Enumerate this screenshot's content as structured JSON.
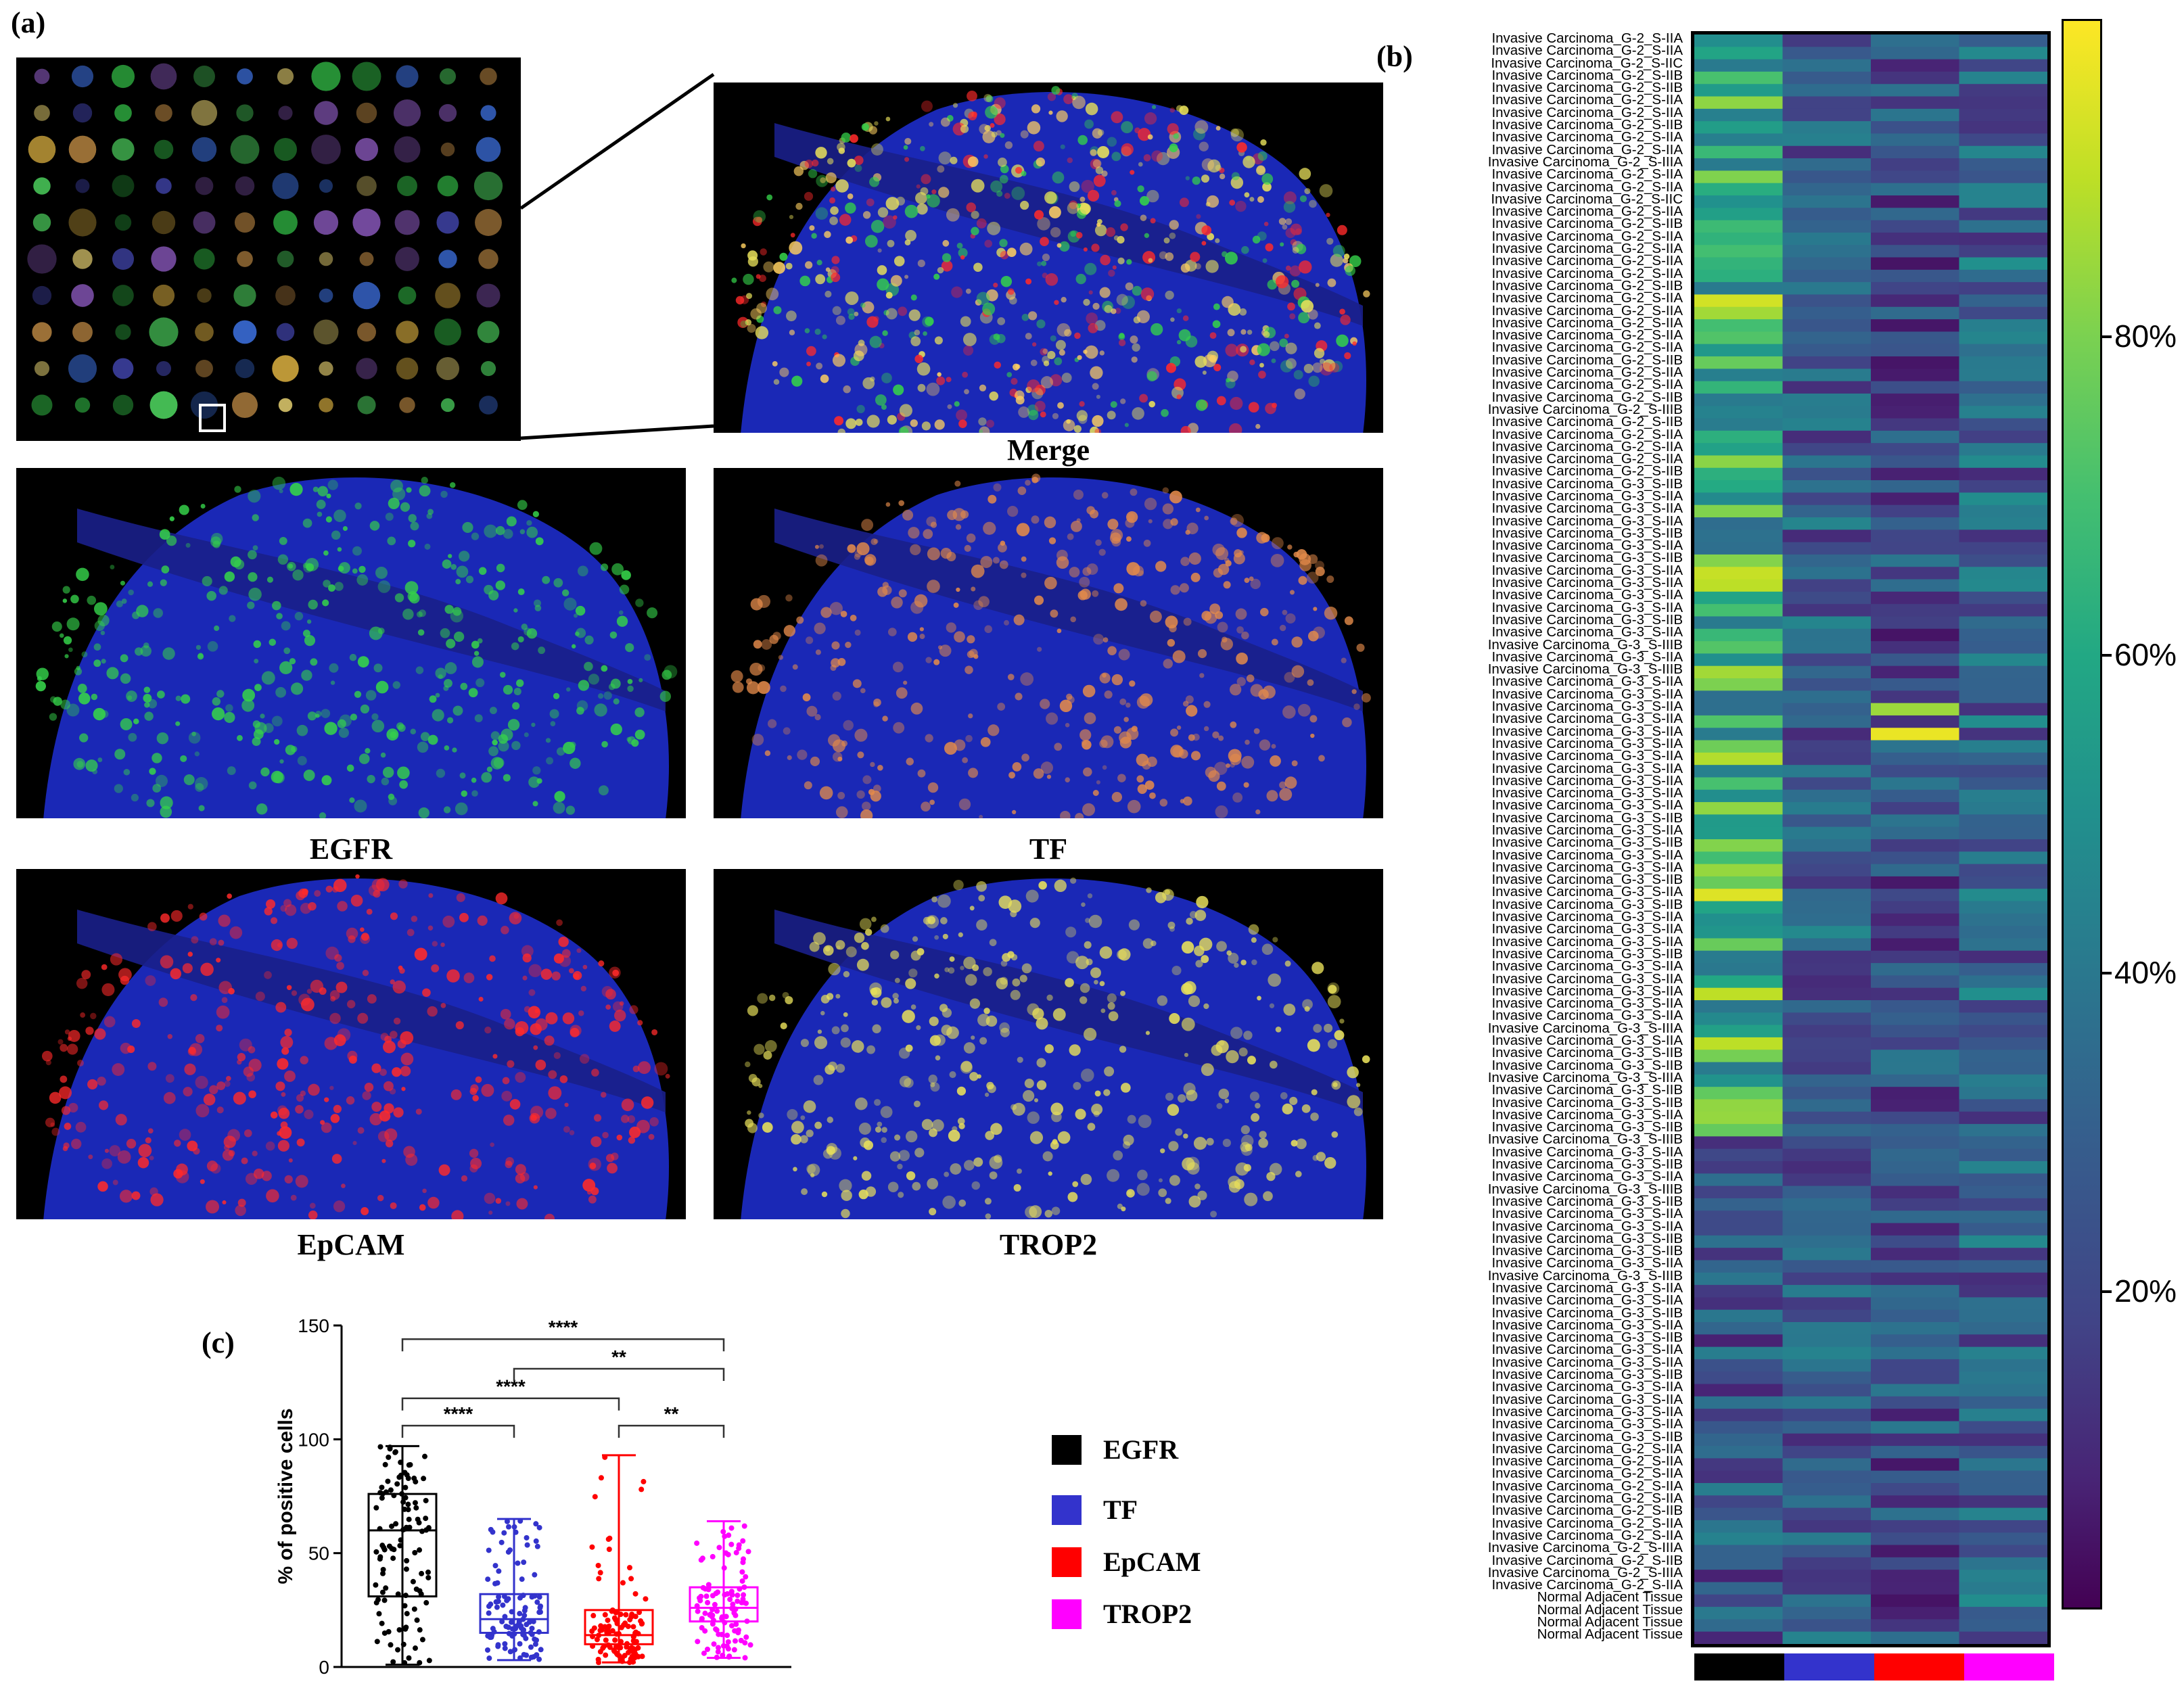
{
  "figure": {
    "panel_a_label": "(a)",
    "panel_b_label": "(b)",
    "panel_c_label": "(c)",
    "captions": {
      "merge": "Merge",
      "egfr": "EGFR",
      "tf": "TF",
      "epcam": "EpCAM",
      "trop2": "TROP2"
    }
  },
  "colors": {
    "egfr": "#000000",
    "tf": "#3333cc",
    "epcam": "#ff0000",
    "trop2": "#ff00ff",
    "nucleus": "#1f2fd6",
    "egfr_stain": "#35d24a",
    "tf_stain": "#e38a4a",
    "epcam_stain": "#ff2a2a",
    "trop2_stain": "#e8e05a"
  },
  "legend": [
    {
      "label": "EGFR",
      "color": "#000000"
    },
    {
      "label": "TF",
      "color": "#3333cc"
    },
    {
      "label": "EpCAM",
      "color": "#ff0000"
    },
    {
      "label": "TROP2",
      "color": "#ff00ff"
    }
  ],
  "heatmap": {
    "markers": [
      "EGFR",
      "TF",
      "EpCAM",
      "TROP2"
    ],
    "marker_colors": [
      "#000000",
      "#3333cc",
      "#ff0000",
      "#ff00ff"
    ],
    "colorbar_ticks": [
      "80%",
      "60%",
      "40%",
      "20%"
    ],
    "colorbar_tick_values": [
      80,
      60,
      40,
      20
    ],
    "range": [
      0,
      100
    ],
    "row_labels": [
      "Invasive Carcinoma_G-2_S-IIA",
      "Invasive Carcinoma_G-2_S-IIA",
      "Invasive Carcinoma_G-2_S-IIC",
      "Invasive Carcinoma_G-2_S-IIB",
      "Invasive Carcinoma_G-2_S-IIB",
      "Invasive Carcinoma_G-2_S-IIA",
      "Invasive Carcinoma_G-2_S-IIA",
      "Invasive Carcinoma_G-2_S-IIB",
      "Invasive Carcinoma_G-2_S-IIA",
      "Invasive Carcinoma_G-2_S-IIA",
      "Invasive Carcinoma_G-2_S-IIIA",
      "Invasive Carcinoma_G-2_S-IIA",
      "Invasive Carcinoma_G-2_S-IIA",
      "Invasive Carcinoma_G-2_S-IIC",
      "Invasive Carcinoma_G-2_S-IIA",
      "Invasive Carcinoma_G-2_S-IIB",
      "Invasive Carcinoma_G-2_S-IIA",
      "Invasive Carcinoma_G-2_S-IIA",
      "Invasive Carcinoma_G-2_S-IIA",
      "Invasive Carcinoma_G-2_S-IIA",
      "Invasive Carcinoma_G-2_S-IIB",
      "Invasive Carcinoma_G-2_S-IIA",
      "Invasive Carcinoma_G-2_S-IIA",
      "Invasive Carcinoma_G-2_S-IIA",
      "Invasive Carcinoma_G-2_S-IIA",
      "Invasive Carcinoma_G-2_S-IIA",
      "Invasive Carcinoma_G-2_S-IIB",
      "Invasive Carcinoma_G-2_S-IIA",
      "Invasive Carcinoma_G-2_S-IIA",
      "Invasive Carcinoma_G-2_S-IIB",
      "Invasive Carcinoma_G-2_S-IIIB",
      "Invasive Carcinoma_G-2_S-IIB",
      "Invasive Carcinoma_G-2_S-IIA",
      "Invasive Carcinoma_G-2_S-IIA",
      "Invasive Carcinoma_G-2_S-IIA",
      "Invasive Carcinoma_G-2_S-IIB",
      "Invasive Carcinoma_G-3_S-IIB",
      "Invasive Carcinoma_G-3_S-IIA",
      "Invasive Carcinoma_G-3_S-IIA",
      "Invasive Carcinoma_G-3_S-IIA",
      "Invasive Carcinoma_G-3_S-IIB",
      "Invasive Carcinoma_G-3_S-IIA",
      "Invasive Carcinoma_G-3_S-IIB",
      "Invasive Carcinoma_G-3_S-IIA",
      "Invasive Carcinoma_G-3_S-IIA",
      "Invasive Carcinoma_G-3_S-IIA",
      "Invasive Carcinoma_G-3_S-IIA",
      "Invasive Carcinoma_G-3_S-IIB",
      "Invasive Carcinoma_G-3_S-IIA",
      "Invasive Carcinoma_G-3_S-IIIB",
      "Invasive Carcinoma_G-3_S-IIA",
      "Invasive Carcinoma_G-3_S-IIIB",
      "Invasive Carcinoma_G-3_S-IIA",
      "Invasive Carcinoma_G-3_S-IIA",
      "Invasive Carcinoma_G-3_S-IIA",
      "Invasive Carcinoma_G-3_S-IIA",
      "Invasive Carcinoma_G-3_S-IIA",
      "Invasive Carcinoma_G-3_S-IIA",
      "Invasive Carcinoma_G-3_S-IIA",
      "Invasive Carcinoma_G-3_S-IIA",
      "Invasive Carcinoma_G-3_S-IIA",
      "Invasive Carcinoma_G-3_S-IIA",
      "Invasive Carcinoma_G-3_S-IIA",
      "Invasive Carcinoma_G-3_S-IIB",
      "Invasive Carcinoma_G-3_S-IIA",
      "Invasive Carcinoma_G-3_S-IIB",
      "Invasive Carcinoma_G-3_S-IIA",
      "Invasive Carcinoma_G-3_S-IIA",
      "Invasive Carcinoma_G-3_S-IIB",
      "Invasive Carcinoma_G-3_S-IIA",
      "Invasive Carcinoma_G-3_S-IIB",
      "Invasive Carcinoma_G-3_S-IIA",
      "Invasive Carcinoma_G-3_S-IIA",
      "Invasive Carcinoma_G-3_S-IIA",
      "Invasive Carcinoma_G-3_S-IIB",
      "Invasive Carcinoma_G-3_S-IIA",
      "Invasive Carcinoma_G-3_S-IIA",
      "Invasive Carcinoma_G-3_S-IIA",
      "Invasive Carcinoma_G-3_S-IIA",
      "Invasive Carcinoma_G-3_S-IIA",
      "Invasive Carcinoma_G-3_S-IIIA",
      "Invasive Carcinoma_G-3_S-IIA",
      "Invasive Carcinoma_G-3_S-IIB",
      "Invasive Carcinoma_G-3_S-IIB",
      "Invasive Carcinoma_G-3_S-IIIA",
      "Invasive Carcinoma_G-3_S-IIB",
      "Invasive Carcinoma_G-3_S-IIB",
      "Invasive Carcinoma_G-3_S-IIA",
      "Invasive Carcinoma_G-3_S-IIB",
      "Invasive Carcinoma_G-3_S-IIIB",
      "Invasive Carcinoma_G-3_S-IIA",
      "Invasive Carcinoma_G-3_S-IIB",
      "Invasive Carcinoma_G-3_S-IIA",
      "Invasive Carcinoma_G-3_S-IIIB",
      "Invasive Carcinoma_G-3_S-IIB",
      "Invasive Carcinoma_G-3_S-IIA",
      "Invasive Carcinoma_G-3_S-IIA",
      "Invasive Carcinoma_G-3_S-IIB",
      "Invasive Carcinoma_G-3_S-IIB",
      "Invasive Carcinoma_G-3_S-IIA",
      "Invasive Carcinoma_G-3_S-IIIB",
      "Invasive Carcinoma_G-3_S-IIA",
      "Invasive Carcinoma_G-3_S-IIA",
      "Invasive Carcinoma_G-3_S-IIB",
      "Invasive Carcinoma_G-3_S-IIA",
      "Invasive Carcinoma_G-3_S-IIB",
      "Invasive Carcinoma_G-3_S-IIA",
      "Invasive Carcinoma_G-3_S-IIA",
      "Invasive Carcinoma_G-3_S-IIB",
      "Invasive Carcinoma_G-3_S-IIA",
      "Invasive Carcinoma_G-3_S-IIA",
      "Invasive Carcinoma_G-3_S-IIA",
      "Invasive Carcinoma_G-3_S-IIA",
      "Invasive Carcinoma_G-3_S-IIB",
      "Invasive Carcinoma_G-2_S-IIA",
      "Invasive Carcinoma_G-2_S-IIA",
      "Invasive Carcinoma_G-2_S-IIA",
      "Invasive Carcinoma_G-2_S-IIA",
      "Invasive Carcinoma_G-2_S-IIA",
      "Invasive Carcinoma_G-2_S-IIB",
      "Invasive Carcinoma_G-2_S-IIA",
      "Invasive Carcinoma_G-2_S-IIA",
      "Invasive Carcinoma_G-2_S-IIIA",
      "Invasive Carcinoma_G-2_S-IIB",
      "Invasive Carcinoma_G-2_S-IIIA",
      "Invasive Carcinoma_G-2_S-IIA",
      "Normal Adjacent Tissue",
      "Normal Adjacent Tissue",
      "Normal Adjacent Tissue",
      "Normal Adjacent Tissue"
    ]
  },
  "chart_data": {
    "type": "box",
    "title": "",
    "ylabel": "% of positive cells",
    "xlabel": "",
    "ylim": [
      0,
      150
    ],
    "yticks": [
      0,
      50,
      100,
      150
    ],
    "groups": [
      {
        "name": "EGFR",
        "color": "#000000",
        "min": 1,
        "q1": 31,
        "median": 60,
        "q3": 76,
        "max": 97
      },
      {
        "name": "TF",
        "color": "#3333cc",
        "min": 3,
        "q1": 15,
        "median": 21,
        "q3": 32,
        "max": 65
      },
      {
        "name": "EpCAM",
        "color": "#ff0000",
        "min": 2,
        "q1": 10,
        "median": 14,
        "q3": 25,
        "max": 93
      },
      {
        "name": "TROP2",
        "color": "#ff00ff",
        "min": 4,
        "q1": 20,
        "median": 26,
        "q3": 35,
        "max": 64
      }
    ],
    "significance": [
      {
        "from": "EGFR",
        "to": "TF",
        "label": "****",
        "y": 106
      },
      {
        "from": "EGFR",
        "to": "EpCAM",
        "label": "****",
        "y": 118
      },
      {
        "from": "TF",
        "to": "TROP2",
        "label": "**",
        "y": 131
      },
      {
        "from": "EGFR",
        "to": "TROP2",
        "label": "****",
        "y": 144
      },
      {
        "from": "EpCAM",
        "to": "TROP2",
        "label": "**",
        "y": 106
      }
    ]
  }
}
